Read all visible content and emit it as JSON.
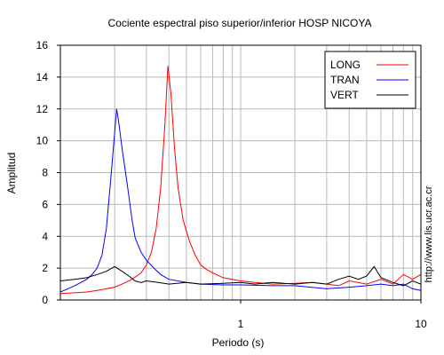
{
  "chart_data": {
    "type": "line",
    "title": "Cociente espectral piso superior/inferior  HOSP NICOYA",
    "xlabel": "Periodo (s)",
    "ylabel": "Amplitud",
    "x_scale": "log",
    "xlim": [
      0.1,
      10
    ],
    "ylim": [
      0,
      16
    ],
    "x_ticks": [
      {
        "value": 1,
        "label": "1"
      },
      {
        "value": 10,
        "label": "10"
      }
    ],
    "y_ticks": [
      0,
      2,
      4,
      6,
      8,
      10,
      12,
      14,
      16
    ],
    "grid": true,
    "legend_position": "top-right",
    "side_note": "http://www.lis.ucr.ac.cr",
    "series": [
      {
        "name": "LONG",
        "color": "#ff0000",
        "points": [
          [
            0.1,
            0.4
          ],
          [
            0.12,
            0.45
          ],
          [
            0.14,
            0.5
          ],
          [
            0.16,
            0.6
          ],
          [
            0.18,
            0.7
          ],
          [
            0.2,
            0.8
          ],
          [
            0.22,
            1.0
          ],
          [
            0.25,
            1.3
          ],
          [
            0.28,
            1.7
          ],
          [
            0.3,
            2.2
          ],
          [
            0.32,
            3.0
          ],
          [
            0.34,
            4.5
          ],
          [
            0.36,
            7.0
          ],
          [
            0.38,
            11.0
          ],
          [
            0.395,
            14.7
          ],
          [
            0.41,
            13.0
          ],
          [
            0.43,
            9.5
          ],
          [
            0.45,
            7.0
          ],
          [
            0.48,
            5.0
          ],
          [
            0.52,
            3.7
          ],
          [
            0.56,
            2.8
          ],
          [
            0.6,
            2.2
          ],
          [
            0.65,
            1.9
          ],
          [
            0.7,
            1.7
          ],
          [
            0.8,
            1.4
          ],
          [
            0.9,
            1.3
          ],
          [
            1.0,
            1.2
          ],
          [
            1.2,
            1.1
          ],
          [
            1.5,
            1.0
          ],
          [
            2.0,
            1.05
          ],
          [
            2.5,
            1.1
          ],
          [
            3.0,
            1.0
          ],
          [
            3.5,
            0.9
          ],
          [
            4.0,
            1.2
          ],
          [
            5.0,
            1.0
          ],
          [
            6.0,
            1.3
          ],
          [
            7.0,
            1.0
          ],
          [
            8.0,
            1.6
          ],
          [
            9.0,
            1.3
          ],
          [
            10.0,
            1.6
          ]
        ]
      },
      {
        "name": "TRAN",
        "color": "#0000ff",
        "points": [
          [
            0.1,
            0.5
          ],
          [
            0.11,
            0.7
          ],
          [
            0.12,
            0.9
          ],
          [
            0.13,
            1.1
          ],
          [
            0.14,
            1.3
          ],
          [
            0.15,
            1.6
          ],
          [
            0.16,
            2.0
          ],
          [
            0.17,
            2.8
          ],
          [
            0.18,
            4.5
          ],
          [
            0.19,
            7.5
          ],
          [
            0.2,
            10.5
          ],
          [
            0.205,
            12.0
          ],
          [
            0.21,
            11.3
          ],
          [
            0.22,
            9.5
          ],
          [
            0.23,
            8.0
          ],
          [
            0.24,
            6.5
          ],
          [
            0.25,
            5.0
          ],
          [
            0.26,
            3.9
          ],
          [
            0.28,
            3.0
          ],
          [
            0.3,
            2.5
          ],
          [
            0.33,
            2.0
          ],
          [
            0.36,
            1.6
          ],
          [
            0.4,
            1.3
          ],
          [
            0.5,
            1.1
          ],
          [
            0.6,
            1.0
          ],
          [
            0.8,
            0.95
          ],
          [
            1.0,
            0.95
          ],
          [
            1.5,
            0.9
          ],
          [
            2.0,
            0.9
          ],
          [
            3.0,
            0.7
          ],
          [
            4.0,
            0.8
          ],
          [
            5.0,
            0.9
          ],
          [
            6.0,
            1.0
          ],
          [
            7.0,
            0.9
          ],
          [
            8.0,
            1.0
          ],
          [
            9.0,
            0.7
          ],
          [
            10.0,
            0.6
          ]
        ]
      },
      {
        "name": "VERT",
        "color": "#000000",
        "points": [
          [
            0.1,
            1.2
          ],
          [
            0.12,
            1.3
          ],
          [
            0.14,
            1.4
          ],
          [
            0.16,
            1.6
          ],
          [
            0.18,
            1.8
          ],
          [
            0.2,
            2.1
          ],
          [
            0.22,
            1.8
          ],
          [
            0.24,
            1.5
          ],
          [
            0.26,
            1.2
          ],
          [
            0.28,
            1.1
          ],
          [
            0.3,
            1.2
          ],
          [
            0.35,
            1.1
          ],
          [
            0.4,
            1.0
          ],
          [
            0.5,
            1.1
          ],
          [
            0.6,
            1.0
          ],
          [
            0.8,
            1.05
          ],
          [
            1.0,
            1.1
          ],
          [
            1.2,
            1.0
          ],
          [
            1.5,
            1.1
          ],
          [
            2.0,
            1.0
          ],
          [
            2.5,
            1.1
          ],
          [
            3.0,
            1.0
          ],
          [
            3.5,
            1.3
          ],
          [
            4.0,
            1.5
          ],
          [
            4.5,
            1.3
          ],
          [
            5.0,
            1.5
          ],
          [
            5.5,
            2.1
          ],
          [
            6.0,
            1.4
          ],
          [
            7.0,
            1.1
          ],
          [
            8.0,
            0.9
          ],
          [
            9.0,
            1.2
          ],
          [
            10.0,
            1.0
          ]
        ]
      }
    ]
  }
}
